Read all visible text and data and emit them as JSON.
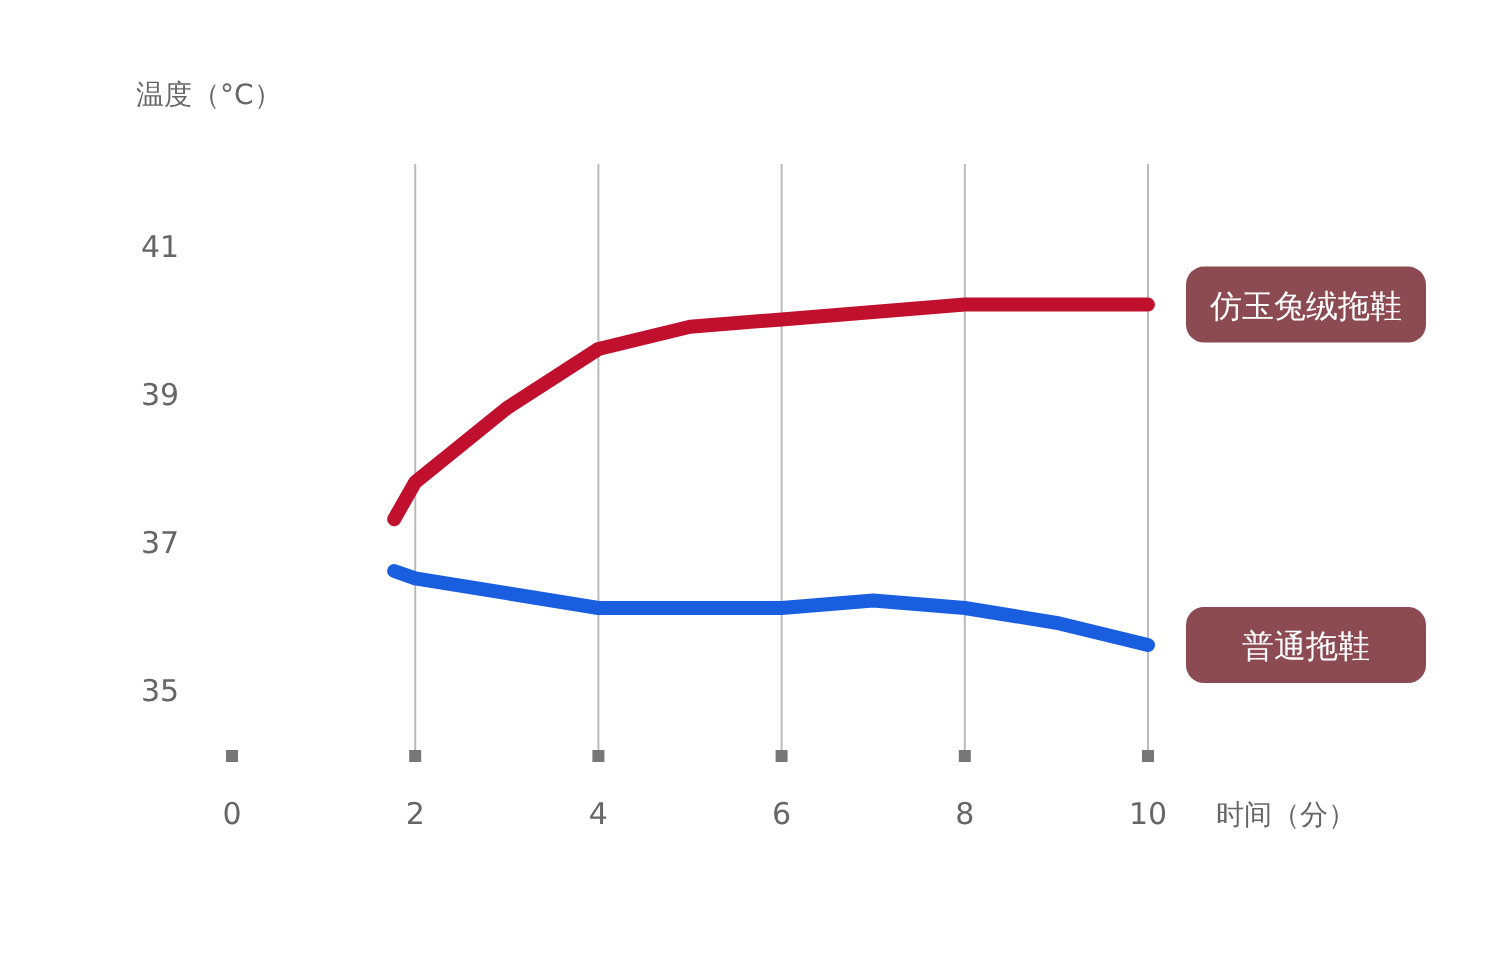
{
  "chart_data": {
    "type": "line",
    "ylabel": "温度（°C）",
    "xlabel": "时间（分）",
    "xlim": [
      0,
      10
    ],
    "ylim": [
      34.1,
      42.1
    ],
    "xticks": [
      0,
      2,
      4,
      6,
      8,
      10
    ],
    "yticks": [
      35,
      37,
      39,
      41
    ],
    "grid": "x",
    "legend": false,
    "line_style": "solid",
    "marker": "none",
    "series": [
      {
        "name": "仿玉兔绒拖鞋",
        "color": "#c0102e",
        "x": [
          1.77,
          2,
          3,
          4,
          5,
          6,
          7,
          8,
          9,
          10
        ],
        "values": [
          37.3,
          37.8,
          38.8,
          39.6,
          39.9,
          40.0,
          40.1,
          40.2,
          40.2,
          40.2
        ]
      },
      {
        "name": "普通拖鞋",
        "color": "#1a5ee0",
        "x": [
          1.77,
          2,
          3,
          4,
          5,
          6,
          7,
          8,
          9,
          10
        ],
        "values": [
          36.6,
          36.5,
          36.3,
          36.1,
          36.1,
          36.1,
          36.2,
          36.1,
          35.9,
          35.6
        ]
      }
    ]
  }
}
